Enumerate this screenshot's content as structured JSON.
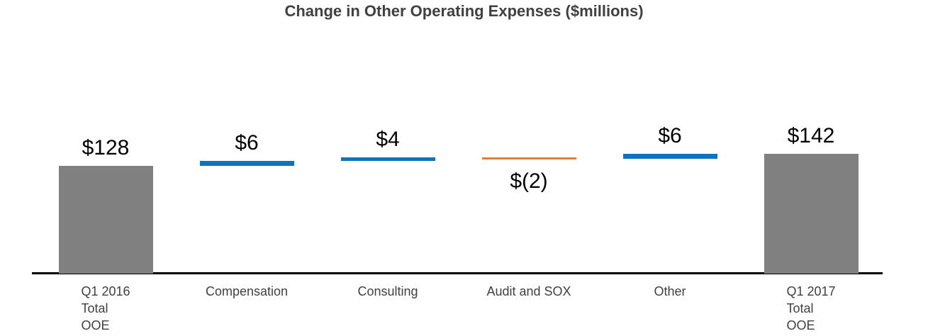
{
  "chart_data": {
    "type": "bar",
    "subtype": "waterfall",
    "title": "Change in Other Operating Expenses ($millions)",
    "xlabel": "",
    "ylabel": "",
    "value_unit": "$millions",
    "axis_range": [
      0,
      142
    ],
    "grid": "off",
    "legend": "none",
    "categories": [
      [
        "Q1 2016",
        "Total",
        "OOE"
      ],
      [
        "Compensation"
      ],
      [
        "Consulting"
      ],
      [
        "Audit and SOX"
      ],
      [
        "Other"
      ],
      [
        "Q1 2017",
        "Total",
        "OOE"
      ]
    ],
    "bars": [
      {
        "name": "q1-2016-total-ooe",
        "label": "$128",
        "value": 128,
        "start": 0,
        "end": 128,
        "role": "total",
        "label_position": "above"
      },
      {
        "name": "compensation",
        "label": "$6",
        "value": 6,
        "start": 128,
        "end": 134,
        "role": "increase",
        "label_position": "above"
      },
      {
        "name": "consulting",
        "label": "$4",
        "value": 4,
        "start": 134,
        "end": 138,
        "role": "increase",
        "label_position": "above"
      },
      {
        "name": "audit-and-sox",
        "label": "$(2)",
        "value": -2,
        "start": 138,
        "end": 136,
        "role": "decrease",
        "label_position": "below"
      },
      {
        "name": "other",
        "label": "$6",
        "value": 6,
        "start": 136,
        "end": 142,
        "role": "increase",
        "label_position": "above"
      },
      {
        "name": "q1-2017-total-ooe",
        "label": "$142",
        "value": 142,
        "start": 0,
        "end": 142,
        "role": "total",
        "label_position": "above"
      }
    ],
    "colors": {
      "total": "#808080",
      "increase": "#0F72BC",
      "decrease": "#E37E34",
      "axis": "#000000",
      "title_text": "#404040",
      "category_text": "#404040",
      "value_text": "#000000"
    }
  }
}
